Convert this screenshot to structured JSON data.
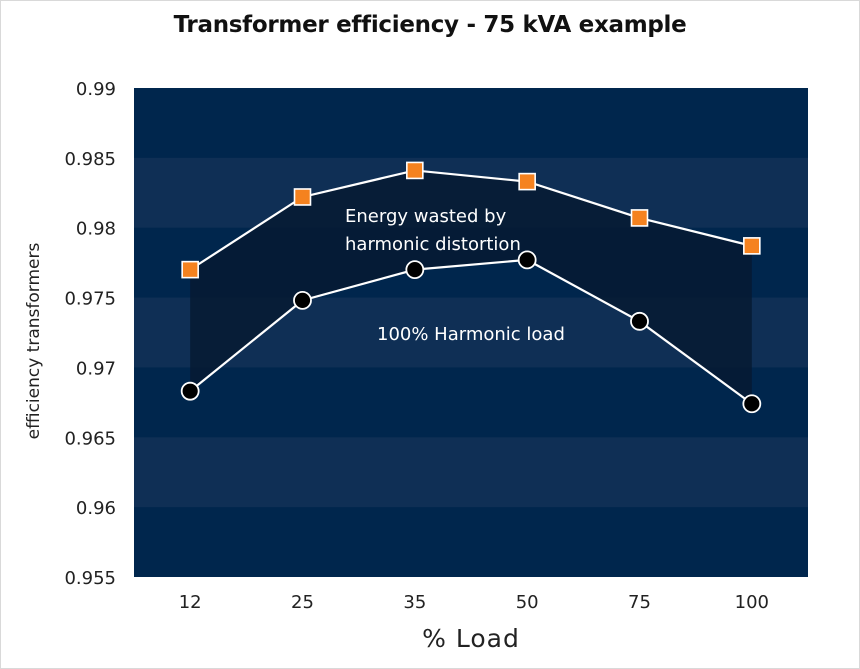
{
  "chart_data": {
    "type": "line",
    "title": "Transformer efficiency - 75 kVA example",
    "xlabel": "% Load",
    "ylabel": "efficiency transformers",
    "categories": [
      "12",
      "25",
      "35",
      "50",
      "75",
      "100"
    ],
    "ylim": [
      0.955,
      0.99
    ],
    "yticks": [
      "0.99",
      "0.985",
      "0.98",
      "0.975",
      "0.97",
      "0.965",
      "0.96",
      "0.955"
    ],
    "series": [
      {
        "values": [
          0.977,
          0.9822,
          0.9841,
          0.9833,
          0.9807,
          0.9787
        ],
        "marker": "square",
        "color": "#f5821f"
      },
      {
        "values": [
          0.9683,
          0.9748,
          0.977,
          0.9777,
          0.9733,
          0.9674
        ],
        "marker": "circle",
        "color": "#000000"
      }
    ],
    "annotations": [
      {
        "text_line1": "Energy wasted by",
        "text_line2": "harmonic distortion"
      },
      {
        "text": "100% Harmonic load"
      }
    ],
    "colors": {
      "plot_dark": "#00264d",
      "plot_band": "#0f2f55",
      "shade": "#061a33",
      "line": "#ffffff"
    },
    "grid": "alternating horizontal bands",
    "legend": "none"
  }
}
